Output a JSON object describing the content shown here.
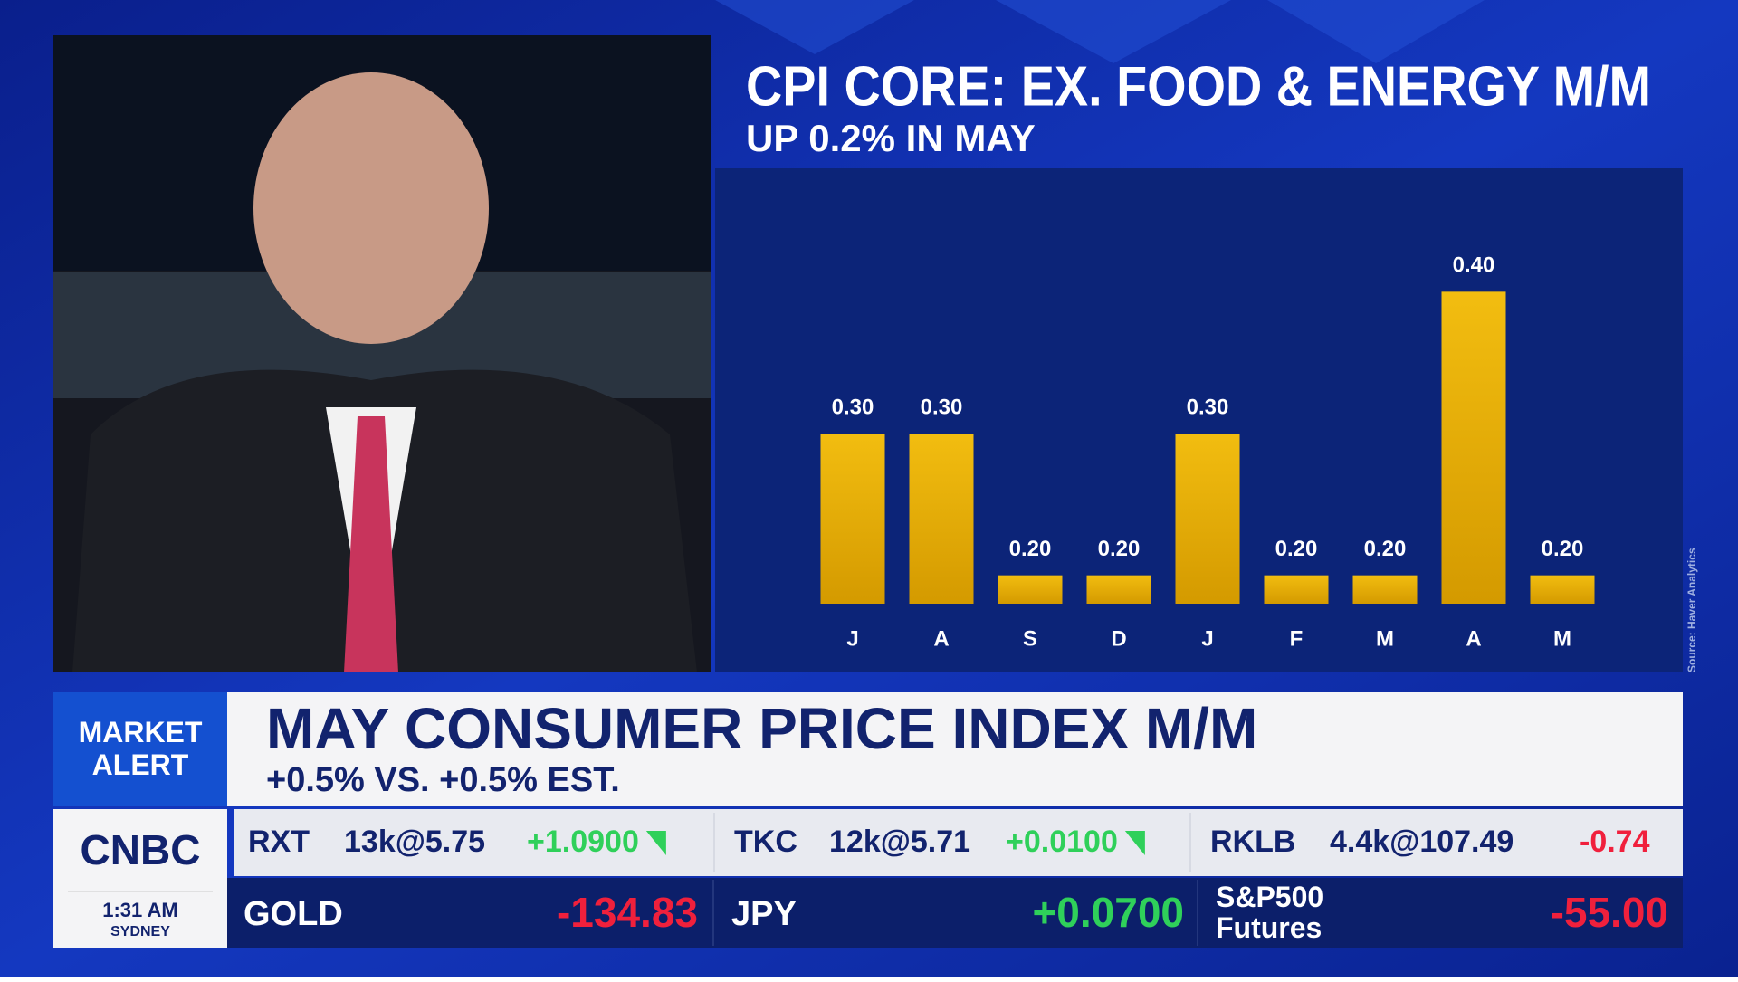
{
  "chart_data": {
    "type": "bar",
    "title": "CPI CORE: EX. FOOD & ENERGY M/M",
    "subtitle": "UP 0.2% IN MAY",
    "categories": [
      "J",
      "A",
      "S",
      "D",
      "J",
      "F",
      "M",
      "A",
      "M"
    ],
    "values": [
      0.3,
      0.3,
      0.2,
      0.2,
      0.3,
      0.2,
      0.2,
      0.4,
      0.2
    ],
    "value_labels": [
      "0.30",
      "0.30",
      "0.20",
      "0.20",
      "0.30",
      "0.20",
      "0.20",
      "0.40",
      "0.20"
    ],
    "color": "#e9b10a",
    "ylim": [
      0.18,
      0.42
    ],
    "source": "Source: Haver Analytics"
  },
  "banner": {
    "tag": "MARKET ALERT",
    "headline": "MAY CONSUMER PRICE INDEX M/M",
    "subhead": "+0.5% VS. +0.5% EST."
  },
  "network": {
    "logo": "CNBC",
    "time": "1:31 AM",
    "city": "SYDNEY"
  },
  "ticker": [
    {
      "symbol": "RXT",
      "trade": "13k@5.75",
      "change": "+1.0900",
      "color": "#2fd05a"
    },
    {
      "symbol": "TKC",
      "trade": "12k@5.71",
      "change": "+0.0100",
      "color": "#2fd05a"
    },
    {
      "symbol": "RKLB",
      "trade": "4.4k@107.49",
      "change": "-0.74",
      "color": "#f0203c"
    }
  ],
  "markets": [
    {
      "name": "GOLD",
      "change": "-134.83",
      "color": "#f0203c"
    },
    {
      "name": "JPY",
      "change": "+0.0700",
      "color": "#2fd05a"
    },
    {
      "name": "S&P500 Futures",
      "change": "-55.00",
      "color": "#f0203c"
    }
  ]
}
